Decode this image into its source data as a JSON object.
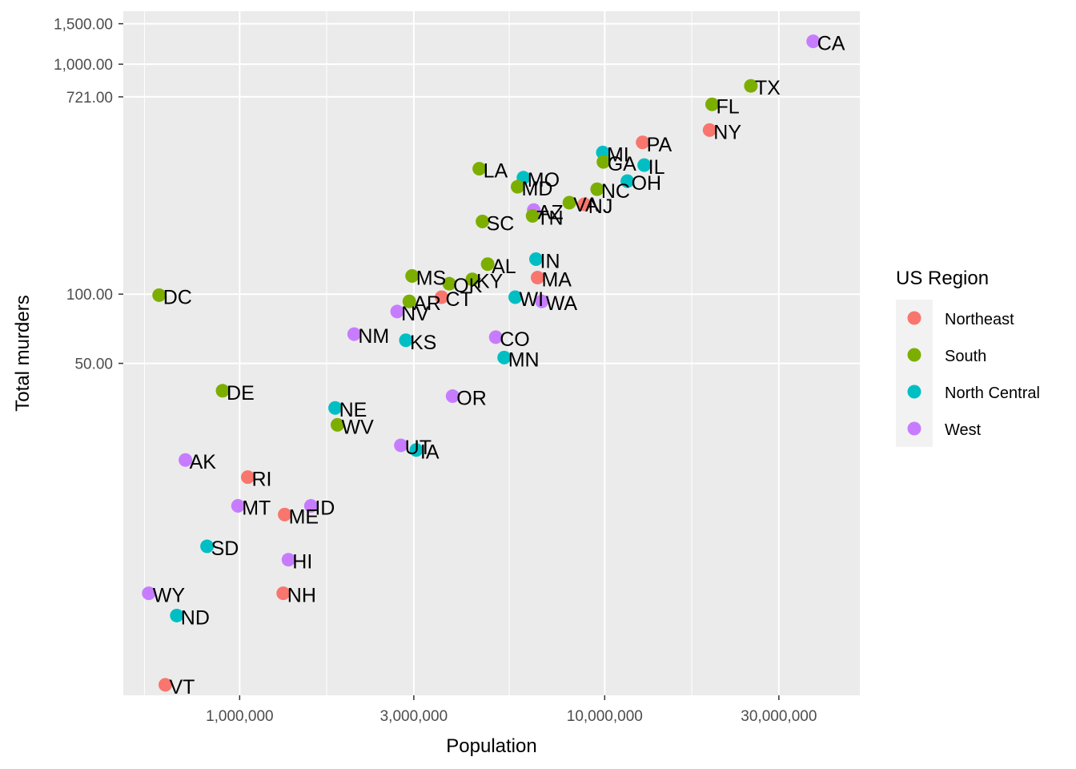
{
  "chart_data": {
    "type": "scatter",
    "title": "",
    "xlabel": "Population",
    "ylabel": "Total murders",
    "x_scale": "log10",
    "y_scale": "log10",
    "xlim": [
      480000,
      50000000
    ],
    "ylim": [
      1.8,
      1700
    ],
    "x_ticks": [
      1000000,
      3000000,
      10000000,
      30000000
    ],
    "x_tick_labels": [
      "1,000,000",
      "3,000,000",
      "10,000,000",
      "30,000,000"
    ],
    "x_minor_ticks": [
      548477,
      1732051,
      5477226,
      17320508
    ],
    "y_ticks": [
      50,
      100,
      721,
      1000,
      1500
    ],
    "y_tick_labels": [
      "50.00",
      "100.00",
      "721.00",
      "1,000.00",
      "1,500.00"
    ],
    "grid": true,
    "legend": {
      "title": "US Region",
      "position": "right",
      "entries": [
        {
          "label": "Northeast",
          "color": "#F8766D"
        },
        {
          "label": "South",
          "color": "#7CAE00"
        },
        {
          "label": "North Central",
          "color": "#00BFC4"
        },
        {
          "label": "West",
          "color": "#C77CFF"
        }
      ]
    },
    "points": [
      {
        "label": "CA",
        "region": "West",
        "x": 37253956,
        "y": 1257
      },
      {
        "label": "TX",
        "region": "South",
        "x": 25145561,
        "y": 805
      },
      {
        "label": "FL",
        "region": "South",
        "x": 19687653,
        "y": 669
      },
      {
        "label": "NY",
        "region": "Northeast",
        "x": 19378102,
        "y": 517
      },
      {
        "label": "PA",
        "region": "Northeast",
        "x": 12702379,
        "y": 457
      },
      {
        "label": "MI",
        "region": "North Central",
        "x": 9883640,
        "y": 413
      },
      {
        "label": "GA",
        "region": "South",
        "x": 9920000,
        "y": 376
      },
      {
        "label": "IL",
        "region": "North Central",
        "x": 12830632,
        "y": 364
      },
      {
        "label": "LA",
        "region": "South",
        "x": 4533372,
        "y": 351
      },
      {
        "label": "MO",
        "region": "North Central",
        "x": 5988927,
        "y": 321
      },
      {
        "label": "OH",
        "region": "North Central",
        "x": 11536504,
        "y": 310
      },
      {
        "label": "MD",
        "region": "South",
        "x": 5773552,
        "y": 293
      },
      {
        "label": "NC",
        "region": "South",
        "x": 9535483,
        "y": 286
      },
      {
        "label": "VA",
        "region": "South",
        "x": 8001024,
        "y": 250
      },
      {
        "label": "NJ",
        "region": "Northeast",
        "x": 8791894,
        "y": 246
      },
      {
        "label": "AZ",
        "region": "West",
        "x": 6392017,
        "y": 232
      },
      {
        "label": "TN",
        "region": "South",
        "x": 6346105,
        "y": 219
      },
      {
        "label": "SC",
        "region": "South",
        "x": 4625364,
        "y": 207
      },
      {
        "label": "IN",
        "region": "North Central",
        "x": 6483802,
        "y": 142
      },
      {
        "label": "AL",
        "region": "South",
        "x": 4779736,
        "y": 135
      },
      {
        "label": "MA",
        "region": "Northeast",
        "x": 6547629,
        "y": 118
      },
      {
        "label": "MS",
        "region": "South",
        "x": 2967297,
        "y": 120
      },
      {
        "label": "OK",
        "region": "South",
        "x": 3751351,
        "y": 111
      },
      {
        "label": "KY",
        "region": "South",
        "x": 4339367,
        "y": 116
      },
      {
        "label": "CT",
        "region": "Northeast",
        "x": 3574097,
        "y": 97
      },
      {
        "label": "AR",
        "region": "South",
        "x": 2915918,
        "y": 93
      },
      {
        "label": "WI",
        "region": "North Central",
        "x": 5686986,
        "y": 97
      },
      {
        "label": "WA",
        "region": "West",
        "x": 6724540,
        "y": 93
      },
      {
        "label": "NV",
        "region": "West",
        "x": 2700551,
        "y": 84
      },
      {
        "label": "DC",
        "region": "South",
        "x": 601723,
        "y": 99
      },
      {
        "label": "NM",
        "region": "West",
        "x": 2059179,
        "y": 67
      },
      {
        "label": "KS",
        "region": "North Central",
        "x": 2853118,
        "y": 63
      },
      {
        "label": "CO",
        "region": "West",
        "x": 5029196,
        "y": 65
      },
      {
        "label": "MN",
        "region": "North Central",
        "x": 5303925,
        "y": 53
      },
      {
        "label": "DE",
        "region": "South",
        "x": 897934,
        "y": 38
      },
      {
        "label": "OR",
        "region": "West",
        "x": 3831074,
        "y": 36
      },
      {
        "label": "NE",
        "region": "North Central",
        "x": 1826341,
        "y": 32
      },
      {
        "label": "WV",
        "region": "South",
        "x": 1852994,
        "y": 27
      },
      {
        "label": "UT",
        "region": "West",
        "x": 2763885,
        "y": 22
      },
      {
        "label": "IA",
        "region": "North Central",
        "x": 3046355,
        "y": 21
      },
      {
        "label": "AK",
        "region": "West",
        "x": 710231,
        "y": 19
      },
      {
        "label": "RI",
        "region": "Northeast",
        "x": 1052567,
        "y": 16
      },
      {
        "label": "MT",
        "region": "West",
        "x": 989415,
        "y": 12
      },
      {
        "label": "ID",
        "region": "West",
        "x": 1567582,
        "y": 12
      },
      {
        "label": "ME",
        "region": "Northeast",
        "x": 1328361,
        "y": 11
      },
      {
        "label": "SD",
        "region": "North Central",
        "x": 814180,
        "y": 8
      },
      {
        "label": "HI",
        "region": "West",
        "x": 1360301,
        "y": 7
      },
      {
        "label": "WY",
        "region": "West",
        "x": 563626,
        "y": 5
      },
      {
        "label": "NH",
        "region": "Northeast",
        "x": 1316470,
        "y": 5
      },
      {
        "label": "ND",
        "region": "North Central",
        "x": 672591,
        "y": 4
      },
      {
        "label": "VT",
        "region": "Northeast",
        "x": 625741,
        "y": 2
      }
    ]
  }
}
